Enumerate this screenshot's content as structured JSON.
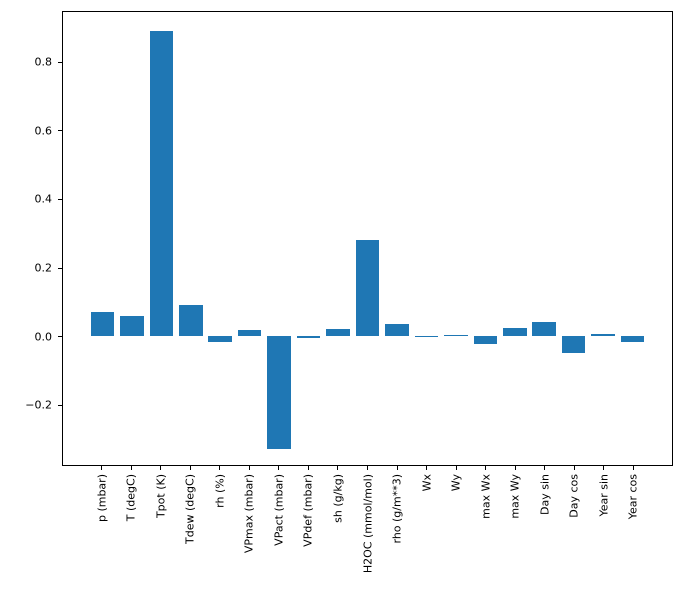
{
  "chart_data": {
    "type": "bar",
    "title": "",
    "xlabel": "",
    "ylabel": "",
    "categories": [
      "p (mbar)",
      "T (degC)",
      "Tpot (K)",
      "Tdew (degC)",
      "rh (%)",
      "VPmax (mbar)",
      "VPact (mbar)",
      "VPdef (mbar)",
      "sh (g/kg)",
      "H2OC (mmol/mol)",
      "rho (g/m**3)",
      "Wx",
      "Wy",
      "max Wx",
      "max Wy",
      "Day sin",
      "Day cos",
      "Year sin",
      "Year cos"
    ],
    "values": [
      0.07,
      0.058,
      0.893,
      0.092,
      -0.016,
      0.018,
      -0.33,
      -0.006,
      0.021,
      0.283,
      0.035,
      0.001,
      0.003,
      -0.023,
      0.024,
      0.041,
      -0.05,
      0.005,
      -0.017
    ],
    "bar_color": "#1f77b4",
    "bar_width_units": 0.8,
    "ylim": [
      -0.377,
      0.949
    ],
    "yticks": [
      0.8,
      0.6,
      0.4,
      0.2,
      0.0,
      -0.2
    ],
    "ytick_labels": [
      "0.8",
      "0.6",
      "0.4",
      "0.2",
      "0.0",
      "−0.2"
    ],
    "grid": false,
    "legend": "none",
    "background_color": "#ffffff",
    "spine_color": "#000000"
  }
}
